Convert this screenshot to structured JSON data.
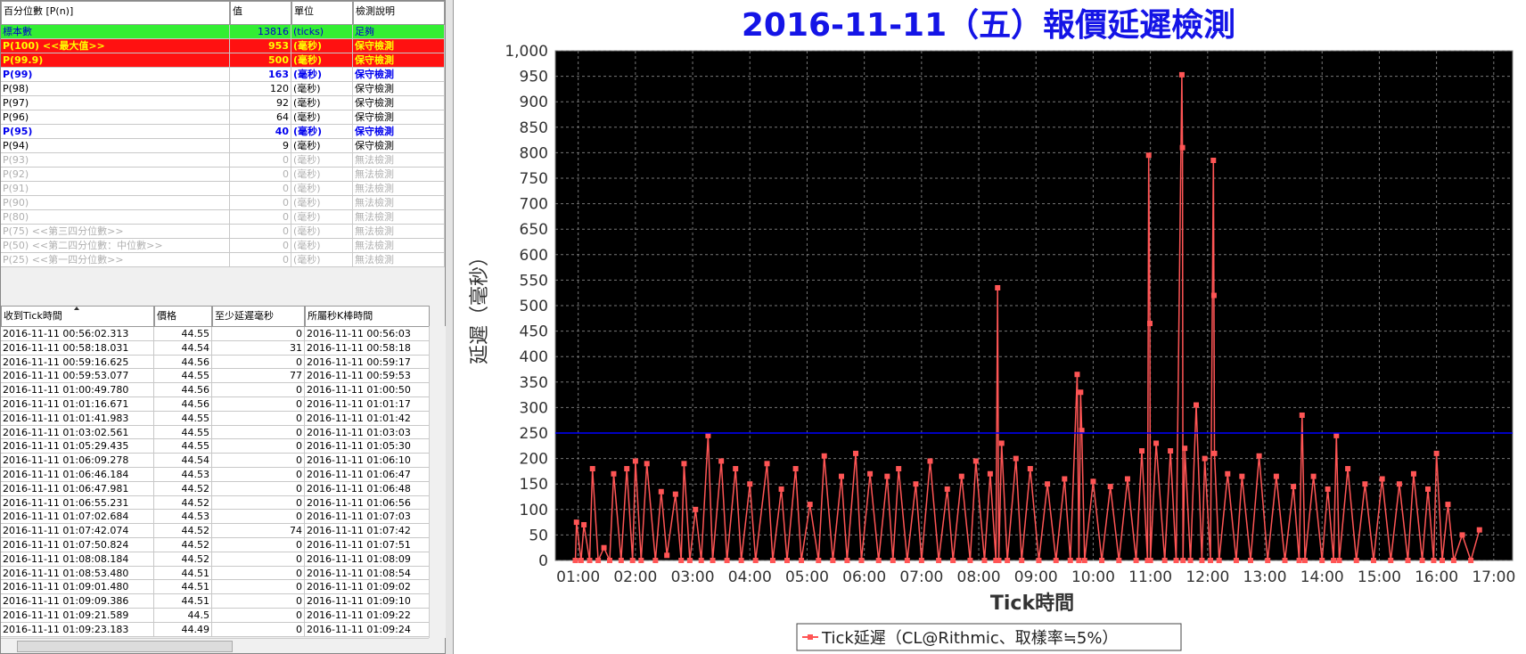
{
  "percentile_table": {
    "headers": [
      "百分位數 [P(n)]",
      "值",
      "單位",
      "檢測說明"
    ],
    "rows": [
      {
        "cells": [
          "標本數",
          13816,
          "(ticks)",
          "足夠"
        ],
        "background": "#33ee33",
        "color": "#0000cc",
        "bold": false
      },
      {
        "cells": [
          "P(100)  <<最大值>>",
          953,
          "(毫秒)",
          "保守檢測"
        ],
        "background": "#ff1111",
        "color": "#ffff00",
        "bold": true
      },
      {
        "cells": [
          "P(99.9)",
          500,
          "(毫秒)",
          "保守檢測"
        ],
        "background": "#ff1111",
        "color": "#ffff00",
        "bold": true
      },
      {
        "cells": [
          "P(99)",
          163,
          "(毫秒)",
          "保守檢測"
        ],
        "background": "#ffffff",
        "color": "#0000ee",
        "bold": true
      },
      {
        "cells": [
          "P(98)",
          120,
          "(毫秒)",
          "保守檢測"
        ],
        "background": "#ffffff",
        "color": "#000000",
        "bold": false
      },
      {
        "cells": [
          "P(97)",
          92,
          "(毫秒)",
          "保守檢測"
        ],
        "background": "#ffffff",
        "color": "#000000",
        "bold": false
      },
      {
        "cells": [
          "P(96)",
          64,
          "(毫秒)",
          "保守檢測"
        ],
        "background": "#ffffff",
        "color": "#000000",
        "bold": false
      },
      {
        "cells": [
          "P(95)",
          40,
          "(毫秒)",
          "保守檢測"
        ],
        "background": "#ffffff",
        "color": "#0000ee",
        "bold": true
      },
      {
        "cells": [
          "P(94)",
          9,
          "(毫秒)",
          "保守檢測"
        ],
        "background": "#ffffff",
        "color": "#000000",
        "bold": false
      },
      {
        "cells": [
          "P(93)",
          0,
          "(毫秒)",
          "無法檢測"
        ],
        "background": "#ffffff",
        "color": "#b0b0b0",
        "bold": false
      },
      {
        "cells": [
          "P(92)",
          0,
          "(毫秒)",
          "無法檢測"
        ],
        "background": "#ffffff",
        "color": "#b0b0b0",
        "bold": false
      },
      {
        "cells": [
          "P(91)",
          0,
          "(毫秒)",
          "無法檢測"
        ],
        "background": "#ffffff",
        "color": "#b0b0b0",
        "bold": false
      },
      {
        "cells": [
          "P(90)",
          0,
          "(毫秒)",
          "無法檢測"
        ],
        "background": "#ffffff",
        "color": "#b0b0b0",
        "bold": false
      },
      {
        "cells": [
          "P(80)",
          0,
          "(毫秒)",
          "無法檢測"
        ],
        "background": "#ffffff",
        "color": "#b0b0b0",
        "bold": false
      },
      {
        "cells": [
          "P(75)  <<第三四分位數>>",
          0,
          "(毫秒)",
          "無法檢測"
        ],
        "background": "#ffffff",
        "color": "#b0b0b0",
        "bold": false
      },
      {
        "cells": [
          "P(50)  <<第二四分位數：中位數>>",
          0,
          "(毫秒)",
          "無法檢測"
        ],
        "background": "#ffffff",
        "color": "#b0b0b0",
        "bold": false
      },
      {
        "cells": [
          "P(25)  <<第一四分位數>>",
          0,
          "(毫秒)",
          "無法檢測"
        ],
        "background": "#ffffff",
        "color": "#b0b0b0",
        "bold": false
      }
    ]
  },
  "tick_table": {
    "headers": [
      "收到Tick時間",
      "價格",
      "至少延遲毫秒",
      "所屬秒K棒時間"
    ],
    "rows": [
      [
        "2016-11-11 00:56:02.313",
        44.55,
        0,
        "2016-11-11 00:56:03"
      ],
      [
        "2016-11-11 00:58:18.031",
        44.54,
        31,
        "2016-11-11 00:58:18"
      ],
      [
        "2016-11-11 00:59:16.625",
        44.56,
        0,
        "2016-11-11 00:59:17"
      ],
      [
        "2016-11-11 00:59:53.077",
        44.55,
        77,
        "2016-11-11 00:59:53"
      ],
      [
        "2016-11-11 01:00:49.780",
        44.56,
        0,
        "2016-11-11 01:00:50"
      ],
      [
        "2016-11-11 01:01:16.671",
        44.56,
        0,
        "2016-11-11 01:01:17"
      ],
      [
        "2016-11-11 01:01:41.983",
        44.55,
        0,
        "2016-11-11 01:01:42"
      ],
      [
        "2016-11-11 01:03:02.561",
        44.55,
        0,
        "2016-11-11 01:03:03"
      ],
      [
        "2016-11-11 01:05:29.435",
        44.55,
        0,
        "2016-11-11 01:05:30"
      ],
      [
        "2016-11-11 01:06:09.278",
        44.54,
        0,
        "2016-11-11 01:06:10"
      ],
      [
        "2016-11-11 01:06:46.184",
        44.53,
        0,
        "2016-11-11 01:06:47"
      ],
      [
        "2016-11-11 01:06:47.981",
        44.52,
        0,
        "2016-11-11 01:06:48"
      ],
      [
        "2016-11-11 01:06:55.231",
        44.52,
        0,
        "2016-11-11 01:06:56"
      ],
      [
        "2016-11-11 01:07:02.684",
        44.53,
        0,
        "2016-11-11 01:07:03"
      ],
      [
        "2016-11-11 01:07:42.074",
        44.52,
        74,
        "2016-11-11 01:07:42"
      ],
      [
        "2016-11-11 01:07:50.824",
        44.52,
        0,
        "2016-11-11 01:07:51"
      ],
      [
        "2016-11-11 01:08:08.184",
        44.52,
        0,
        "2016-11-11 01:08:09"
      ],
      [
        "2016-11-11 01:08:53.480",
        44.51,
        0,
        "2016-11-11 01:08:54"
      ],
      [
        "2016-11-11 01:09:01.480",
        44.51,
        0,
        "2016-11-11 01:09:02"
      ],
      [
        "2016-11-11 01:09:09.386",
        44.51,
        0,
        "2016-11-11 01:09:10"
      ],
      [
        "2016-11-11 01:09:21.589",
        44.5,
        0,
        "2016-11-11 01:09:22"
      ],
      [
        "2016-11-11 01:09:23.183",
        44.49,
        0,
        "2016-11-11 01:09:24"
      ]
    ]
  },
  "chart_data": {
    "type": "line",
    "title": "2016-11-11（五）報價延遲檢測",
    "xlabel": "Tick時間",
    "ylabel": "延遲（毫秒）",
    "background": "#000000",
    "grid": true,
    "legend": "bottom",
    "reference_line": {
      "value": 250,
      "color": "#0000ff"
    },
    "xlim": [
      0.6,
      17.33
    ],
    "xticks": [
      {
        "value": 1,
        "label": "01:00"
      },
      {
        "value": 2,
        "label": "02:00"
      },
      {
        "value": 3,
        "label": "03:00"
      },
      {
        "value": 4,
        "label": "04:00"
      },
      {
        "value": 5,
        "label": "05:00"
      },
      {
        "value": 6,
        "label": "06:00"
      },
      {
        "value": 7,
        "label": "07:00"
      },
      {
        "value": 8,
        "label": "08:00"
      },
      {
        "value": 9,
        "label": "09:00"
      },
      {
        "value": 10,
        "label": "10:00"
      },
      {
        "value": 11,
        "label": "11:00"
      },
      {
        "value": 12,
        "label": "12:00"
      },
      {
        "value": 13,
        "label": "13:00"
      },
      {
        "value": 14,
        "label": "14:00"
      },
      {
        "value": 15,
        "label": "15:00"
      },
      {
        "value": 16,
        "label": "16:00"
      },
      {
        "value": 17,
        "label": "17:00"
      }
    ],
    "ylim": [
      0,
      1000
    ],
    "yticks": [
      0,
      50,
      100,
      150,
      200,
      250,
      300,
      350,
      400,
      450,
      500,
      550,
      600,
      650,
      700,
      750,
      800,
      850,
      900,
      950,
      {
        "value": 1000,
        "label": "1,000"
      }
    ],
    "series": [
      {
        "name": "Tick延遲（CL@Rithmic、取樣率≒5%）",
        "color": "#ff5555",
        "x": [
          0.95,
          0.97,
          1.05,
          1.1,
          1.2,
          1.25,
          1.35,
          1.45,
          1.55,
          1.62,
          1.75,
          1.85,
          1.95,
          2.0,
          2.1,
          2.2,
          2.35,
          2.45,
          2.55,
          2.7,
          2.8,
          2.85,
          2.95,
          3.05,
          3.15,
          3.27,
          3.35,
          3.5,
          3.6,
          3.75,
          3.85,
          4.0,
          4.1,
          4.3,
          4.4,
          4.55,
          4.65,
          4.8,
          4.9,
          5.05,
          5.2,
          5.3,
          5.45,
          5.6,
          5.7,
          5.85,
          5.95,
          6.1,
          6.25,
          6.4,
          6.5,
          6.6,
          6.75,
          6.9,
          7.0,
          7.15,
          7.3,
          7.45,
          7.55,
          7.7,
          7.85,
          7.95,
          8.1,
          8.2,
          8.3,
          8.33,
          8.35,
          8.4,
          8.5,
          8.65,
          8.75,
          8.9,
          9.05,
          9.2,
          9.35,
          9.5,
          9.6,
          9.72,
          9.75,
          9.78,
          9.8,
          9.85,
          10.0,
          10.15,
          10.3,
          10.45,
          10.6,
          10.75,
          10.85,
          10.95,
          10.97,
          10.99,
          11.0,
          11.1,
          11.25,
          11.35,
          11.45,
          11.55,
          11.56,
          11.57,
          11.6,
          11.7,
          11.8,
          11.9,
          11.95,
          12.05,
          12.1,
          12.11,
          12.12,
          12.2,
          12.35,
          12.5,
          12.6,
          12.75,
          12.9,
          13.05,
          13.2,
          13.35,
          13.5,
          13.6,
          13.65,
          13.7,
          13.85,
          14.0,
          14.1,
          14.2,
          14.25,
          14.3,
          14.45,
          14.6,
          14.75,
          14.9,
          15.05,
          15.2,
          15.35,
          15.5,
          15.6,
          15.75,
          15.85,
          15.95,
          16.0,
          16.1,
          16.2,
          16.3,
          16.45,
          16.6,
          16.75
        ],
        "values": [
          0,
          75,
          0,
          70,
          0,
          180,
          0,
          25,
          0,
          170,
          0,
          180,
          0,
          195,
          0,
          190,
          0,
          135,
          10,
          130,
          0,
          190,
          0,
          100,
          0,
          245,
          0,
          195,
          0,
          180,
          0,
          150,
          0,
          190,
          0,
          140,
          0,
          180,
          0,
          110,
          0,
          205,
          0,
          165,
          0,
          210,
          0,
          170,
          0,
          165,
          0,
          180,
          0,
          150,
          0,
          195,
          0,
          140,
          0,
          165,
          0,
          195,
          0,
          170,
          0,
          535,
          0,
          230,
          0,
          200,
          0,
          180,
          0,
          150,
          0,
          160,
          0,
          365,
          0,
          330,
          255,
          0,
          155,
          0,
          145,
          0,
          160,
          0,
          215,
          0,
          795,
          465,
          0,
          230,
          0,
          215,
          0,
          953,
          810,
          0,
          220,
          0,
          305,
          0,
          200,
          0,
          785,
          520,
          210,
          0,
          170,
          0,
          165,
          0,
          205,
          0,
          165,
          0,
          145,
          0,
          285,
          0,
          165,
          0,
          140,
          0,
          245,
          0,
          180,
          0,
          150,
          0,
          160,
          0,
          150,
          0,
          170,
          0,
          140,
          0,
          210,
          0,
          110,
          0,
          50,
          0,
          60
        ]
      }
    ]
  }
}
